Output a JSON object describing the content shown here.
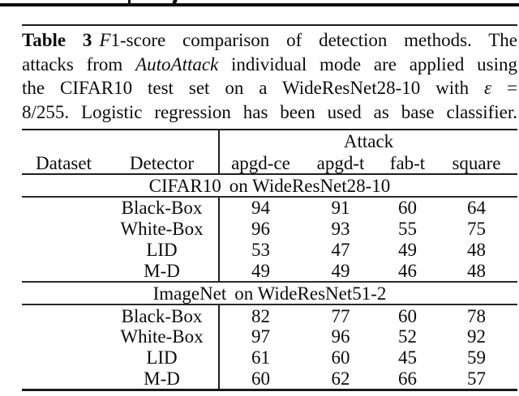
{
  "caption": {
    "label": "Table 3",
    "line1_f": "F",
    "line1_rest": "1-score comparison of detection methods. The",
    "line2_a": "attacks from ",
    "line2_italic": "AutoAttack",
    "line2_b": " individual mode are applied using",
    "line3_a": "the CIFAR10 test set on a WideResNet28-10 with ",
    "line3_epsilon": "ε",
    "line3_b": " =",
    "line4": "8/255. Logistic regression has been used as base classifier."
  },
  "table": {
    "attack_group_label": "Attack",
    "columns": [
      "Dataset",
      "Detector",
      "apgd-ce",
      "apgd-t",
      "fab-t",
      "square"
    ],
    "sections": [
      {
        "dataset": "CIFAR10",
        "model": "on WideResNet28-10",
        "rows": [
          {
            "detector": "Black-Box",
            "values": [
              94,
              91,
              60,
              64
            ],
            "bold": [
              false,
              false,
              true,
              false
            ]
          },
          {
            "detector": "White-Box",
            "values": [
              96,
              93,
              55,
              75
            ],
            "bold": [
              true,
              true,
              false,
              true
            ]
          },
          {
            "detector": "LID",
            "values": [
              53,
              47,
              49,
              48
            ],
            "bold": [
              false,
              false,
              false,
              false
            ]
          },
          {
            "detector": "M-D",
            "values": [
              49,
              49,
              46,
              48
            ],
            "bold": [
              false,
              false,
              false,
              false
            ]
          }
        ]
      },
      {
        "dataset": "ImageNet",
        "model": "on WideResNet51-2",
        "rows": [
          {
            "detector": "Black-Box",
            "values": [
              82,
              77,
              60,
              78
            ],
            "bold": [
              false,
              false,
              false,
              false
            ]
          },
          {
            "detector": "White-Box",
            "values": [
              97,
              96,
              52,
              92
            ],
            "bold": [
              true,
              true,
              false,
              true
            ]
          },
          {
            "detector": "LID",
            "values": [
              61,
              60,
              45,
              59
            ],
            "bold": [
              false,
              false,
              false,
              false
            ]
          },
          {
            "detector": "M-D",
            "values": [
              60,
              62,
              66,
              57
            ],
            "bold": [
              false,
              false,
              true,
              false
            ]
          }
        ]
      }
    ]
  }
}
